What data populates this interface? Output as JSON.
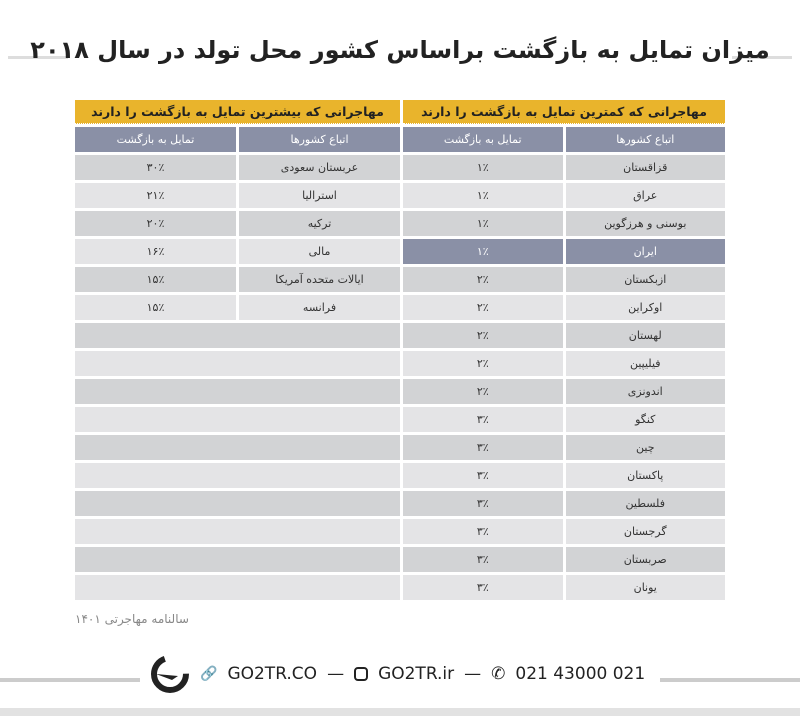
{
  "title": "میزان تمایل به بازگشت براساس کشور محل تولد در سال ۲۰۱۸",
  "least": {
    "header": "مهاجرانی که کمترین تمایل به بازگشت را دارند",
    "col_country": "اتباع کشورها",
    "col_value": "تمایل به بازگشت",
    "rows": [
      [
        "قزاقستان",
        "۱٪"
      ],
      [
        "عراق",
        "۱٪"
      ],
      [
        "بوسنی و هرزگوین",
        "۱٪"
      ],
      [
        "ایران",
        "۱٪"
      ],
      [
        "ازبکستان",
        "۲٪"
      ],
      [
        "اوکراین",
        "۲٪"
      ],
      [
        "لهستان",
        "۲٪"
      ],
      [
        "فیلیپین",
        "۲٪"
      ],
      [
        "اندونزی",
        "۲٪"
      ],
      [
        "کنگو",
        "۳٪"
      ],
      [
        "چین",
        "۳٪"
      ],
      [
        "پاکستان",
        "۳٪"
      ],
      [
        "فلسطین",
        "۳٪"
      ],
      [
        "گرجستان",
        "۳٪"
      ],
      [
        "صربستان",
        "۳٪"
      ],
      [
        "یونان",
        "۳٪"
      ]
    ],
    "highlighted": "ایران"
  },
  "most": {
    "header": "مهاجرانی که بیشترین تمایل به بازگشت را دارند",
    "col_country": "اتباع کشورها",
    "col_value": "تمایل به بازگشت",
    "rows": [
      [
        "عربستان سعودی",
        "۳۰٪"
      ],
      [
        "استرالیا",
        "۲۱٪"
      ],
      [
        "ترکیه",
        "۲۰٪"
      ],
      [
        "مالی",
        "۱۶٪"
      ],
      [
        "ایالات متحده آمریکا",
        "۱۵٪"
      ],
      [
        "فرانسه",
        "۱۵٪"
      ]
    ]
  },
  "source": "سالنامه مهاجرتی ۱۴۰۱",
  "footer": {
    "website": "GO2TR.CO",
    "instagram": "GO2TR.ir",
    "phone": "021 43000 021",
    "separator": "—"
  },
  "colors": {
    "accent": "#e9b42c",
    "header": "#8a90a6"
  }
}
